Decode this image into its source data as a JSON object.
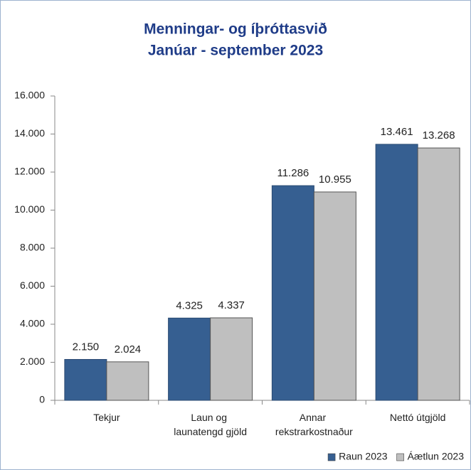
{
  "chart_data": {
    "type": "bar",
    "title": "Menningar- og íþróttasvið",
    "subtitle": "Janúar - september 2023",
    "categories": [
      "Tekjur",
      "Laun og launatengd gjöld",
      "Annar rekstrarkostnaður",
      "Nettó útgjöld"
    ],
    "series": [
      {
        "name": "Raun 2023",
        "color": "#365f91",
        "values": [
          2150,
          4325,
          11286,
          13461
        ],
        "value_labels": [
          "2.150",
          "4.325",
          "11.286",
          "13.461"
        ]
      },
      {
        "name": "Áætlun 2023",
        "color": "#bfbfbf",
        "values": [
          2024,
          4337,
          10955,
          13268
        ],
        "value_labels": [
          "2.024",
          "4.337",
          "10.955",
          "13.268"
        ]
      }
    ],
    "ylim": [
      0,
      16000
    ],
    "yticks": [
      0,
      {
        "value": 2000,
        "label": "2.000"
      },
      {
        "value": 4000,
        "label": "4.000"
      },
      {
        "value": 6000,
        "label": "6.000"
      },
      {
        "value": 8000,
        "label": "8.000"
      },
      {
        "value": 10000,
        "label": "10.000"
      },
      {
        "value": 12000,
        "label": "12.000"
      },
      {
        "value": 14000,
        "label": "14.000"
      },
      {
        "value": 16000,
        "label": "16.000"
      }
    ],
    "legend": "bottom-right"
  }
}
